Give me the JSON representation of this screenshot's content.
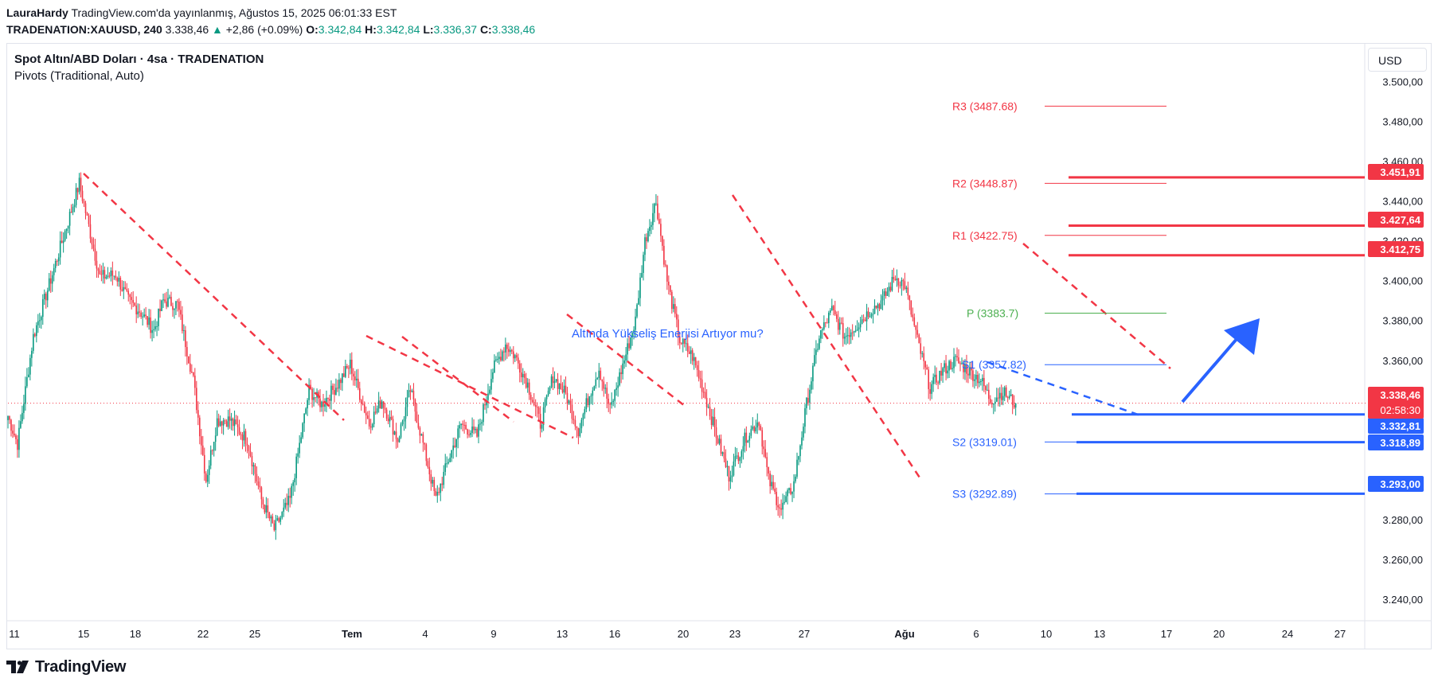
{
  "header": {
    "author": "LauraHardy",
    "published": "TradingView.com'da yayınlanmış, Ağustos 15, 2025 06:01:33 EST",
    "symbol": "TRADENATION:XAUUSD, 240",
    "last": "3.338,46",
    "change_arrow": "▲",
    "change": "+2,86 (+0.09%)",
    "o_label": "O:",
    "o_value": "3.342,84",
    "h_label": "H:",
    "h_value": "3.342,84",
    "l_label": "L:",
    "l_value": "3.336,37",
    "c_label": "C:",
    "c_value": "3.338,46"
  },
  "legend": {
    "title": "Spot Altın/ABD Doları · 4sa · TRADENATION",
    "indicator": "Pivots (Traditional, Auto)"
  },
  "currency_button": "USD",
  "annotation_text": "Altında Yükseliş Enerjisi Artıyor mu?",
  "footer": {
    "brand": "TradingView"
  },
  "colors": {
    "up": "#089981",
    "down": "#f23645",
    "blue": "#2962ff",
    "pivot_red": "#f23645",
    "pivot_green": "#4caf50",
    "pivot_blue": "#2962ff"
  },
  "chart_data": {
    "type": "candlestick",
    "timeframe": "240",
    "ylim": [
      3230,
      3505
    ],
    "y_ticks": [
      3240,
      3260,
      3280,
      3300,
      3320,
      3340,
      3360,
      3380,
      3400,
      3420,
      3440,
      3460,
      3480,
      3500
    ],
    "y_tick_labels": [
      "3.240,00",
      "3.260,00",
      "3.280,00",
      "3.300,00",
      "3.320,00",
      "3.340,00",
      "3.360,00",
      "3.380,00",
      "3.400,00",
      "3.420,00",
      "3.440,00",
      "3.460,00",
      "3.480,00",
      "3.500,00"
    ],
    "x_labels": [
      {
        "label": "11",
        "bold": false
      },
      {
        "label": "15",
        "bold": false
      },
      {
        "label": "18",
        "bold": false
      },
      {
        "label": "22",
        "bold": false
      },
      {
        "label": "25",
        "bold": false
      },
      {
        "label": "Tem",
        "bold": true
      },
      {
        "label": "4",
        "bold": false
      },
      {
        "label": "9",
        "bold": false
      },
      {
        "label": "13",
        "bold": false
      },
      {
        "label": "16",
        "bold": false
      },
      {
        "label": "20",
        "bold": false
      },
      {
        "label": "23",
        "bold": false
      },
      {
        "label": "27",
        "bold": false
      },
      {
        "label": "Ağu",
        "bold": true
      },
      {
        "label": "6",
        "bold": false
      },
      {
        "label": "10",
        "bold": false
      },
      {
        "label": "13",
        "bold": false
      },
      {
        "label": "17",
        "bold": false
      },
      {
        "label": "20",
        "bold": false
      },
      {
        "label": "24",
        "bold": false
      },
      {
        "label": "27",
        "bold": false
      }
    ],
    "price_path": [
      [
        0,
        3332
      ],
      [
        6,
        3318
      ],
      [
        16,
        3372
      ],
      [
        26,
        3398
      ],
      [
        38,
        3430
      ],
      [
        45,
        3449
      ],
      [
        58,
        3402
      ],
      [
        68,
        3403
      ],
      [
        76,
        3390
      ],
      [
        83,
        3385
      ],
      [
        92,
        3375
      ],
      [
        98,
        3390
      ],
      [
        107,
        3388
      ],
      [
        117,
        3350
      ],
      [
        125,
        3300
      ],
      [
        132,
        3330
      ],
      [
        140,
        3330
      ],
      [
        151,
        3320
      ],
      [
        160,
        3290
      ],
      [
        168,
        3275
      ],
      [
        178,
        3290
      ],
      [
        190,
        3345
      ],
      [
        198,
        3338
      ],
      [
        208,
        3348
      ],
      [
        216,
        3358
      ],
      [
        228,
        3328
      ],
      [
        236,
        3340
      ],
      [
        246,
        3320
      ],
      [
        254,
        3345
      ],
      [
        262,
        3318
      ],
      [
        270,
        3290
      ],
      [
        278,
        3310
      ],
      [
        286,
        3328
      ],
      [
        296,
        3322
      ],
      [
        306,
        3355
      ],
      [
        314,
        3368
      ],
      [
        320,
        3362
      ],
      [
        328,
        3348
      ],
      [
        336,
        3328
      ],
      [
        344,
        3352
      ],
      [
        352,
        3343
      ],
      [
        360,
        3325
      ],
      [
        367,
        3343
      ],
      [
        373,
        3356
      ],
      [
        380,
        3335
      ],
      [
        386,
        3352
      ],
      [
        396,
        3380
      ],
      [
        402,
        3420
      ],
      [
        409,
        3440
      ],
      [
        416,
        3400
      ],
      [
        424,
        3370
      ],
      [
        432,
        3362
      ],
      [
        440,
        3342
      ],
      [
        448,
        3320
      ],
      [
        455,
        3302
      ],
      [
        466,
        3322
      ],
      [
        474,
        3330
      ],
      [
        480,
        3300
      ],
      [
        488,
        3285
      ],
      [
        496,
        3298
      ],
      [
        504,
        3338
      ],
      [
        512,
        3372
      ],
      [
        520,
        3385
      ],
      [
        528,
        3372
      ],
      [
        536,
        3378
      ],
      [
        544,
        3385
      ],
      [
        552,
        3390
      ],
      [
        560,
        3402
      ],
      [
        566,
        3398
      ],
      [
        574,
        3370
      ],
      [
        582,
        3346
      ],
      [
        590,
        3355
      ],
      [
        598,
        3360
      ],
      [
        606,
        3355
      ],
      [
        614,
        3350
      ],
      [
        620,
        3340
      ],
      [
        628,
        3344
      ],
      [
        636,
        3338
      ]
    ],
    "candle_count": 637,
    "last_price": 3338.46,
    "pivots": [
      {
        "name": "R3",
        "label": "R3 (3487.68)",
        "value": 3487.68,
        "color": "#f23645"
      },
      {
        "name": "R2",
        "label": "R2 (3448.87)",
        "value": 3448.87,
        "color": "#f23645"
      },
      {
        "name": "R1",
        "label": "R1 (3422.75)",
        "value": 3422.75,
        "color": "#f23645"
      },
      {
        "name": "P",
        "label": "P (3383.7)",
        "value": 3383.7,
        "color": "#4caf50"
      },
      {
        "name": "S1",
        "label": "S1 (3357.82)",
        "value": 3357.82,
        "color": "#2962ff"
      },
      {
        "name": "S2",
        "label": "S2 (3319.01)",
        "value": 3319.01,
        "color": "#2962ff"
      },
      {
        "name": "S3",
        "label": "S3 (3292.89)",
        "value": 3292.89,
        "color": "#2962ff"
      }
    ],
    "horizontal_levels": [
      {
        "value": 3451.91,
        "label": "3.451,91",
        "color": "#f23645"
      },
      {
        "value": 3427.64,
        "label": "3.427,64",
        "color": "#f23645"
      },
      {
        "value": 3412.75,
        "label": "3.412,75",
        "color": "#f23645"
      },
      {
        "value": 3332.81,
        "label": "3.332,81",
        "color": "#2962ff"
      },
      {
        "value": 3318.89,
        "label": "3.318,89",
        "color": "#2962ff"
      },
      {
        "value": 3293.0,
        "label": "3.293,00",
        "color": "#2962ff"
      }
    ],
    "price_label": {
      "value": 3338.46,
      "label": "3.338,46",
      "countdown": "02:58:30",
      "color": "#f23645"
    }
  }
}
